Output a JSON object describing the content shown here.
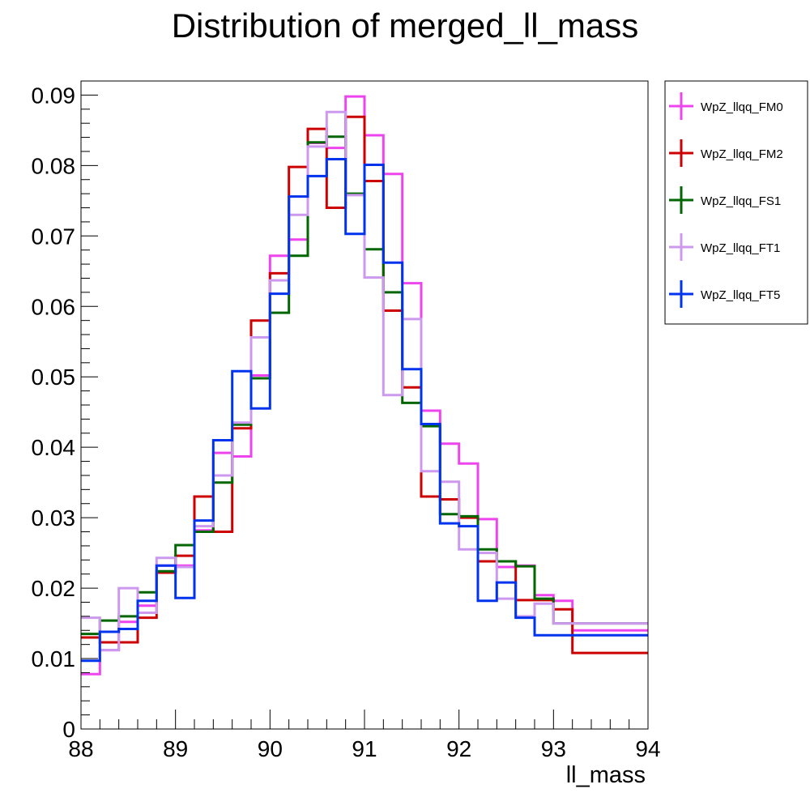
{
  "chart_data": {
    "type": "line",
    "title": "Distribution of merged_ll_mass",
    "xlabel": "ll_mass",
    "ylabel": "",
    "xlim": [
      88,
      94
    ],
    "ylim": [
      0,
      0.092
    ],
    "x_ticks": [
      "88",
      "89",
      "90",
      "91",
      "92",
      "93",
      "94"
    ],
    "y_ticks": [
      "0",
      "0.01",
      "0.02",
      "0.03",
      "0.04",
      "0.05",
      "0.06",
      "0.07",
      "0.08",
      "0.09"
    ],
    "bin_edges": [
      88.0,
      88.2,
      88.4,
      88.6,
      88.8,
      89.0,
      89.2,
      89.4,
      89.6,
      89.8,
      90.0,
      90.2,
      90.4,
      90.6,
      90.8,
      91.0,
      91.2,
      91.4,
      91.6,
      91.8,
      92.0,
      92.2,
      92.4,
      92.6,
      92.8,
      93.0,
      93.2,
      93.4,
      93.6,
      93.8,
      94.0
    ],
    "grid": false,
    "legend_position": "right",
    "series": [
      {
        "name": "WpZ_llqq_FM0",
        "color": "#ee44ee",
        "values": [
          0.0078,
          0.0112,
          0.0152,
          0.0175,
          0.0232,
          0.0232,
          0.0282,
          0.0392,
          0.0387,
          0.0502,
          0.0672,
          0.0695,
          0.0832,
          0.0825,
          0.0898,
          0.0843,
          0.0788,
          0.0633,
          0.0452,
          0.0405,
          0.0377,
          0.0298,
          0.023,
          0.0232,
          0.019,
          0.0182,
          0.014,
          0.014,
          0.014,
          0.014
        ]
      },
      {
        "name": "WpZ_llqq_FM2",
        "color": "#cc0000",
        "values": [
          0.013,
          0.0123,
          0.0123,
          0.0158,
          0.0222,
          0.0246,
          0.033,
          0.028,
          0.0427,
          0.058,
          0.0647,
          0.0798,
          0.0852,
          0.074,
          0.0869,
          0.0778,
          0.0594,
          0.0485,
          0.033,
          0.0326,
          0.03,
          0.0238,
          0.0238,
          0.0183,
          0.0183,
          0.017,
          0.0108,
          0.0108,
          0.0108,
          0.0108
        ]
      },
      {
        "name": "WpZ_llqq_FS1",
        "color": "#006600",
        "values": [
          0.0135,
          0.0154,
          0.016,
          0.0194,
          0.0224,
          0.0261,
          0.028,
          0.035,
          0.0432,
          0.0498,
          0.0591,
          0.0672,
          0.0833,
          0.0841,
          0.076,
          0.0681,
          0.062,
          0.0463,
          0.043,
          0.0305,
          0.0302,
          0.0255,
          0.0238,
          0.0231,
          0.0185,
          0.015,
          0.015,
          0.015,
          0.015,
          0.015
        ]
      },
      {
        "name": "WpZ_llqq_FT1",
        "color": "#cc99ee",
        "values": [
          0.0158,
          0.0112,
          0.02,
          0.0165,
          0.0243,
          0.023,
          0.0288,
          0.036,
          0.0435,
          0.0556,
          0.0637,
          0.073,
          0.0827,
          0.0876,
          0.0758,
          0.0641,
          0.0474,
          0.0582,
          0.0366,
          0.0351,
          0.0255,
          0.025,
          0.0185,
          0.016,
          0.0178,
          0.015,
          0.015,
          0.015,
          0.015,
          0.015
        ]
      },
      {
        "name": "WpZ_llqq_FT5",
        "color": "#0033ee",
        "values": [
          0.0097,
          0.0138,
          0.0142,
          0.0182,
          0.0232,
          0.0186,
          0.0296,
          0.041,
          0.0508,
          0.0455,
          0.0618,
          0.0756,
          0.0785,
          0.0809,
          0.0703,
          0.0801,
          0.0662,
          0.0511,
          0.0433,
          0.0292,
          0.0288,
          0.0182,
          0.0208,
          0.0158,
          0.0133,
          0.0133,
          0.0133,
          0.0133,
          0.0133,
          0.0133
        ]
      }
    ]
  }
}
